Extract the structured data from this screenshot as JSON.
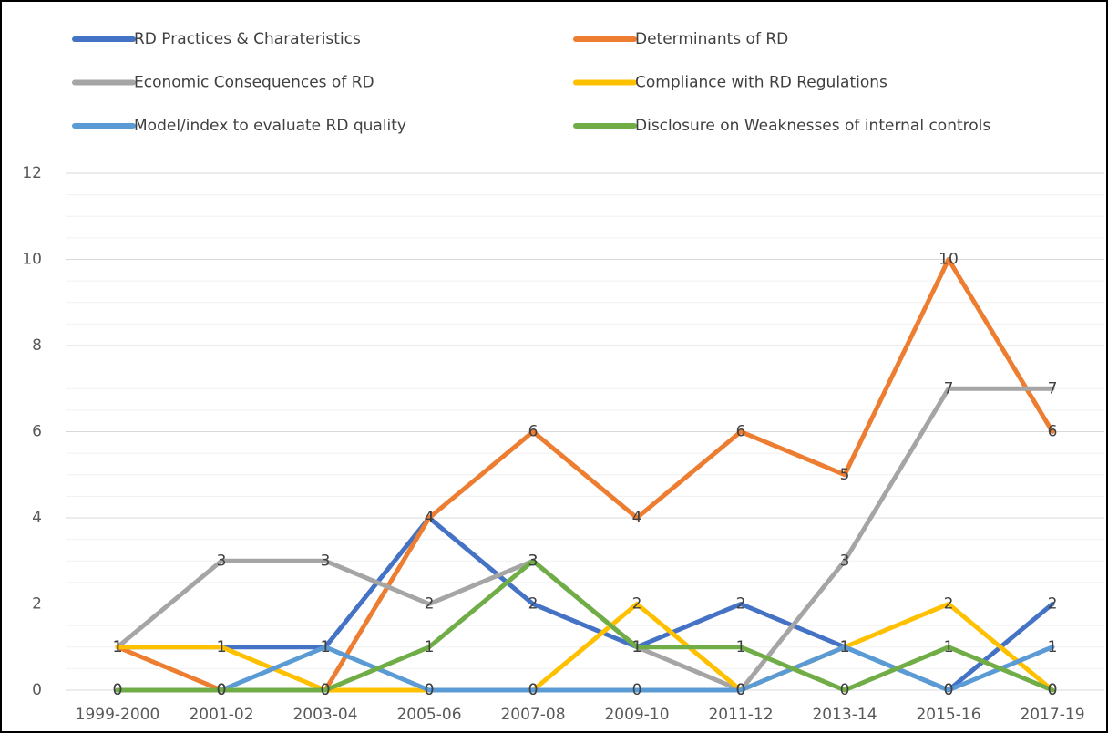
{
  "chart_data": {
    "type": "line",
    "categories": [
      "1999-2000",
      "2001-02",
      "2003-04",
      "2005-06",
      "2007-08",
      "2009-10",
      "2011-12",
      "2013-14",
      "2015-16",
      "2017-19"
    ],
    "series": [
      {
        "name": "RD Practices & Charateristics",
        "color": "#4472c4",
        "values": [
          1,
          1,
          1,
          4,
          2,
          1,
          2,
          1,
          0,
          2
        ]
      },
      {
        "name": "Determinants of RD",
        "color": "#ed7d31",
        "values": [
          1,
          0,
          0,
          4,
          6,
          4,
          6,
          5,
          10,
          6
        ]
      },
      {
        "name": "Economic Consequences of RD",
        "color": "#a5a5a5",
        "values": [
          1,
          3,
          3,
          2,
          3,
          1,
          0,
          3,
          7,
          7
        ]
      },
      {
        "name": "Compliance with RD Regulations",
        "color": "#ffc000",
        "values": [
          1,
          1,
          0,
          0,
          0,
          2,
          0,
          1,
          2,
          0
        ]
      },
      {
        "name": "Model/index to evaluate RD quality",
        "color": "#5b9bd5",
        "values": [
          0,
          0,
          1,
          0,
          0,
          0,
          0,
          1,
          0,
          1
        ]
      },
      {
        "name": "Disclosure on Weaknesses of internal controls",
        "color": "#70ad47",
        "values": [
          0,
          0,
          0,
          1,
          3,
          1,
          1,
          0,
          1,
          0
        ]
      }
    ],
    "ylim": [
      0,
      12
    ],
    "yticks": [
      0,
      2,
      4,
      6,
      8,
      10,
      12
    ],
    "grid": true,
    "legend": "top",
    "data_labels": true
  }
}
